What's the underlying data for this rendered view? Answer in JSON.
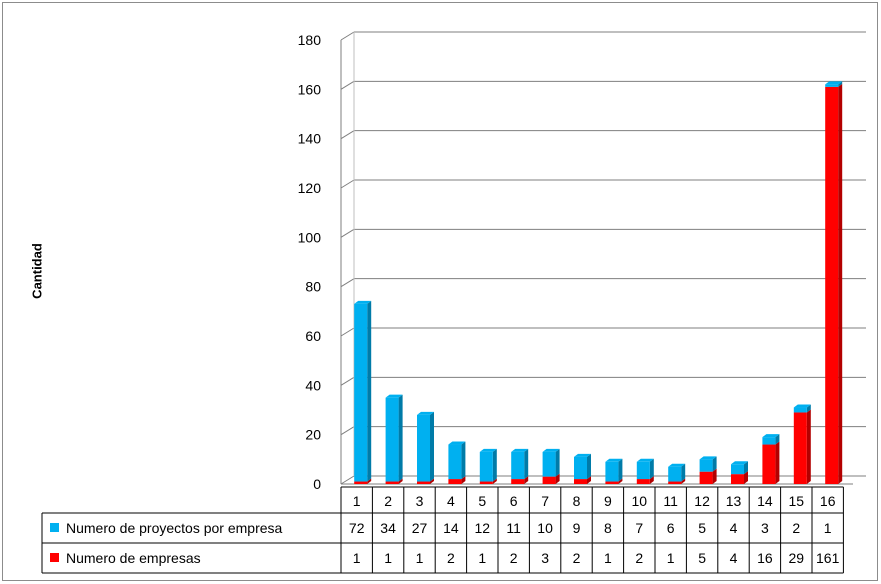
{
  "chart_data": {
    "type": "bar",
    "title": "",
    "xlabel": "",
    "ylabel": "Cantidad",
    "ylim": [
      0,
      180
    ],
    "yticks": [
      "0",
      "20",
      "40",
      "60",
      "80",
      "100",
      "120",
      "140",
      "160",
      "180"
    ],
    "categories": [
      "1",
      "2",
      "3",
      "4",
      "5",
      "6",
      "7",
      "8",
      "9",
      "10",
      "11",
      "12",
      "13",
      "14",
      "15",
      "16"
    ],
    "grid": true,
    "legend": "data-table-left",
    "series": [
      {
        "name": "Numero de proyectos por empresa",
        "color": "#00b0f0",
        "values": [
          72,
          34,
          27,
          14,
          12,
          11,
          10,
          9,
          8,
          7,
          6,
          5,
          4,
          3,
          2,
          1
        ],
        "labels": [
          "72",
          "34",
          "27",
          "14",
          "12",
          "11",
          "10",
          "9",
          "8",
          "7",
          "6",
          "5",
          "4",
          "3",
          "2",
          "1"
        ]
      },
      {
        "name": "Numero de empresas",
        "color": "#ff0000",
        "values": [
          1,
          1,
          1,
          2,
          1,
          2,
          3,
          2,
          1,
          2,
          1,
          5,
          4,
          16,
          29,
          161
        ],
        "labels": [
          "1",
          "1",
          "1",
          "2",
          "1",
          "2",
          "3",
          "2",
          "1",
          "2",
          "1",
          "5",
          "4",
          "16",
          "29",
          "161"
        ]
      }
    ]
  }
}
